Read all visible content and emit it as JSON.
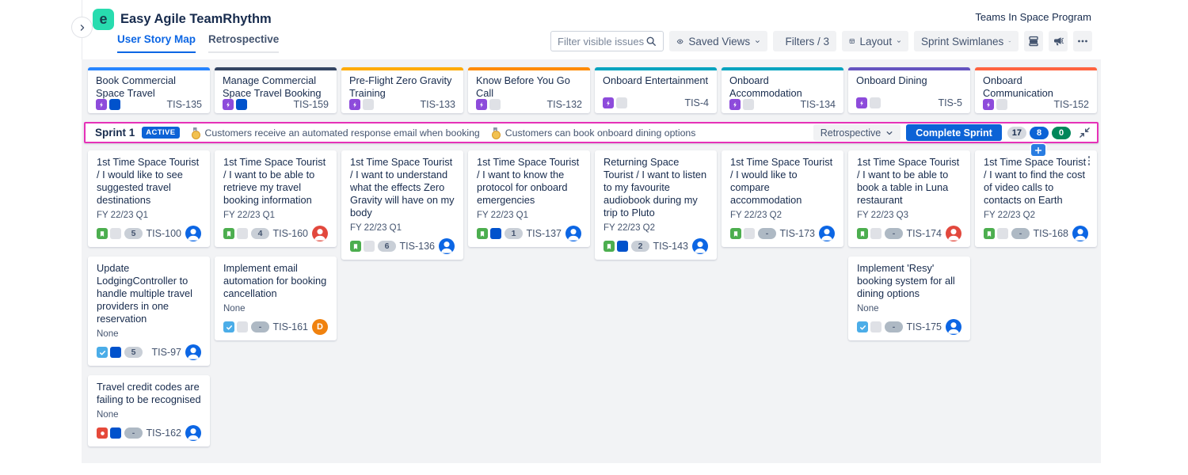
{
  "app": {
    "logo_letter": "e",
    "title": "Easy Agile TeamRhythm",
    "program": "Teams In Space Program"
  },
  "tabs": [
    {
      "label": "User Story Map",
      "active": true
    },
    {
      "label": "Retrospective",
      "active": false
    }
  ],
  "toolbar": {
    "filter_placeholder": "Filter visible issues",
    "saved_views": "Saved Views",
    "filters": "Filters / 3",
    "layout": "Layout",
    "sprint_swimlanes": "Sprint Swimlanes"
  },
  "sprint": {
    "name": "Sprint 1",
    "status_badge": "ACTIVE",
    "goals": [
      {
        "icon": "medal",
        "text": "Customers receive an automated response email when booking"
      },
      {
        "icon": "medal",
        "text": "Customers can book onboard dining options"
      }
    ],
    "retrospective_button": "Retrospective",
    "complete_button": "Complete Sprint",
    "counts": [
      {
        "value": "17",
        "bg": "#D5D9DF",
        "fg": "#172B4D"
      },
      {
        "value": "8",
        "bg": "#0C63D6",
        "fg": "#FFFFFF"
      },
      {
        "value": "0",
        "bg": "#00875A",
        "fg": "#FFFFFF"
      }
    ]
  },
  "epics": [
    {
      "title": "Book Commercial Space Travel",
      "key": "TIS-135",
      "color": "#2684FF",
      "status": "inprogress"
    },
    {
      "title": "Manage Commercial Space Travel Booking",
      "key": "TIS-159",
      "color": "#344563",
      "status": "inprogress"
    },
    {
      "title": "Pre-Flight Zero Gravity Training",
      "key": "TIS-133",
      "color": "#FFAB00",
      "status": "todo"
    },
    {
      "title": "Know Before You Go Call",
      "key": "TIS-132",
      "color": "#FF8B00",
      "status": "todo"
    },
    {
      "title": "Onboard Entertainment",
      "key": "TIS-4",
      "color": "#00A3BF",
      "status": "todo"
    },
    {
      "title": "Onboard Accommodation",
      "key": "TIS-134",
      "color": "#00A3BF",
      "status": "todo"
    },
    {
      "title": "Onboard Dining",
      "key": "TIS-5",
      "color": "#6554C0",
      "status": "todo"
    },
    {
      "title": "Onboard Communication",
      "key": "TIS-152",
      "color": "#FF6340",
      "status": "todo"
    }
  ],
  "columns": [
    {
      "cards": [
        {
          "title": "1st Time Space Tourist / I would like to see suggested travel destinations",
          "label": "FY 22/23 Q1",
          "type": "story",
          "status": "todo",
          "estimate": "5",
          "key": "TIS-100",
          "avatar": "blue"
        },
        {
          "title": "Update LodgingController to handle multiple travel providers in one reservation",
          "label": "None",
          "type": "task",
          "status": "inprogress",
          "estimate": "5",
          "key": "TIS-97",
          "avatar": "blue"
        },
        {
          "title": "Travel credit codes are failing to be recognised",
          "label": "None",
          "type": "bug",
          "status": "inprogress",
          "estimate": "-",
          "key": "TIS-162",
          "avatar": "blue"
        }
      ]
    },
    {
      "cards": [
        {
          "title": "1st Time Space Tourist / I want to be able to retrieve my travel booking information",
          "label": "FY 22/23 Q1",
          "type": "story",
          "status": "todo",
          "estimate": "4",
          "key": "TIS-160",
          "avatar": "red"
        },
        {
          "title": "Implement email automation for booking cancellation",
          "label": "None",
          "type": "task",
          "status": "todo",
          "estimate": "-",
          "key": "TIS-161",
          "avatar": "orange",
          "avatar_letter": "D"
        }
      ]
    },
    {
      "cards": [
        {
          "title": "1st Time Space Tourist / I want to understand what the effects Zero Gravity will have on my body",
          "label": "FY 22/23 Q1",
          "type": "story",
          "status": "todo",
          "estimate": "6",
          "key": "TIS-136",
          "avatar": "blue"
        }
      ]
    },
    {
      "cards": [
        {
          "title": "1st Time Space Tourist / I want to know the protocol for onboard emergencies",
          "label": "FY 22/23 Q1",
          "type": "story",
          "status": "inprogress",
          "estimate": "1",
          "key": "TIS-137",
          "avatar": "blue"
        }
      ]
    },
    {
      "cards": [
        {
          "title": "Returning Space Tourist / I want to listen to my favourite audiobook during my trip to Pluto",
          "label": "FY 22/23 Q2",
          "type": "story",
          "status": "inprogress",
          "estimate": "2",
          "key": "TIS-143",
          "avatar": "blue"
        }
      ]
    },
    {
      "cards": [
        {
          "title": "1st Time Space Tourist / I would like to compare accommodation",
          "label": "FY 22/23 Q2",
          "type": "story",
          "status": "todo",
          "estimate": "-",
          "key": "TIS-173",
          "avatar": "blue"
        }
      ]
    },
    {
      "cards": [
        {
          "title": "1st Time Space Tourist / I want to be able to book a table in Luna restaurant",
          "label": "FY 22/23 Q3",
          "type": "story",
          "status": "todo",
          "estimate": "-",
          "key": "TIS-174",
          "avatar": "red"
        },
        {
          "title": "Implement 'Resy' booking system for all dining options",
          "label": "None",
          "type": "task",
          "status": "todo",
          "estimate": "-",
          "key": "TIS-175",
          "avatar": "blue"
        }
      ]
    },
    {
      "cards": [
        {
          "title": "1st Time Space Tourist / I want to find the cost of video calls to contacts on Earth",
          "label": "FY 22/23 Q2",
          "type": "story",
          "status": "todo",
          "estimate": "-",
          "key": "TIS-168",
          "avatar": "blue",
          "has_add_button": true,
          "has_menu": true
        }
      ]
    }
  ],
  "colors": {
    "type": {
      "story": "#4CAE4F",
      "task": "#4BADE8",
      "bug": "#E5493A",
      "epic": "#8D4BDB"
    },
    "status": {
      "todo": "#DFE1E6",
      "inprogress": "#0052CC"
    },
    "avatar": {
      "blue": "#0C66E4",
      "red": "#E2483D",
      "orange": "#F0820F"
    },
    "accent_magenta": "#E632B8",
    "brand_teal": "#28DCAF"
  }
}
